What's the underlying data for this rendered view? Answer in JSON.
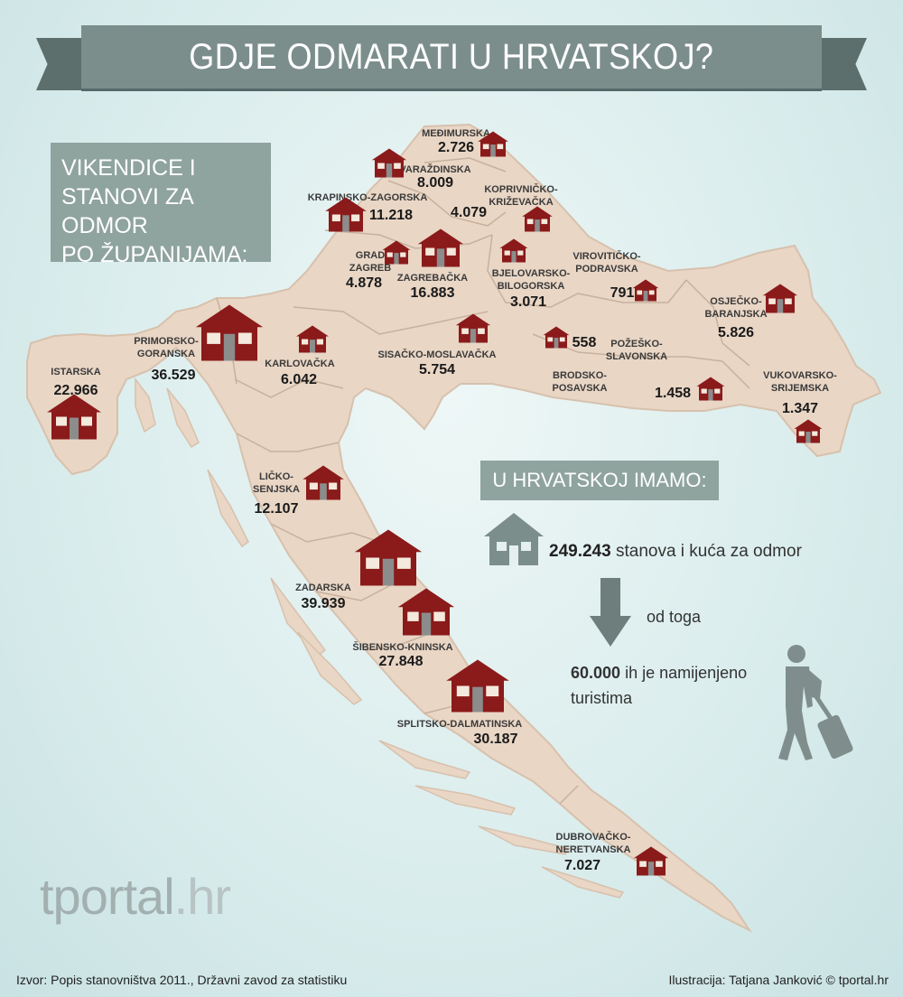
{
  "title": "GDJE ODMARATI U HRVATSKOJ?",
  "subtitle": "VIKENDICE I\nSTANOVI ZA ODMOR\nPO ŽUPANIJAMA:",
  "colors": {
    "house": "#8b1a1a",
    "land": "#e9d6c5",
    "border": "#c4ad99",
    "panel": "#8fa39f",
    "banner": "#7b8e8b"
  },
  "counties": [
    {
      "name": "MEĐIMURSKA",
      "value": "2.726"
    },
    {
      "name": "VARAŽDINSKA",
      "value": "8.009"
    },
    {
      "name": "KOPRIVNIČKO-\nKRIŽEVAČKA",
      "value": "4.079"
    },
    {
      "name": "KRAPINSKO-ZAGORSKA",
      "value": "11.218"
    },
    {
      "name": "GRAD\nZAGREB",
      "value": "4.878"
    },
    {
      "name": "ZAGREBAČKA",
      "value": "16.883"
    },
    {
      "name": "BJELOVARSKO-\nBILOGORSKA",
      "value": "3.071"
    },
    {
      "name": "VIROVITIČKO-\nPODRAVSKA",
      "value": "791"
    },
    {
      "name": "OSJEČKO-\nBARANJSKA",
      "value": "5.826"
    },
    {
      "name": "PRIMORSKO-\nGORANSKA",
      "value": "36.529"
    },
    {
      "name": "KARLOVAČKA",
      "value": "6.042"
    },
    {
      "name": "SISAČKO-MOSLAVAČKA",
      "value": "5.754"
    },
    {
      "name": "POŽEŠKO-\nSLAVONSKA",
      "value": "558"
    },
    {
      "name": "BRODSKO-\nPOSAVSKA",
      "value": "1.458"
    },
    {
      "name": "VUKOVARSKO-\nSRIJEMSKA",
      "value": "1.347"
    },
    {
      "name": "ISTARSKA",
      "value": "22.966"
    },
    {
      "name": "LIČKO-\nSENJSKA",
      "value": "12.107"
    },
    {
      "name": "ZADARSKA",
      "value": "39.939"
    },
    {
      "name": "ŠIBENSKO-KNINSKA",
      "value": "27.848"
    },
    {
      "name": "SPLITSKO-DALMATINSKA",
      "value": "30.187"
    },
    {
      "name": "DUBROVAČKO-\nNERETVANSKA",
      "value": "7.027"
    }
  ],
  "summary": {
    "title": "U HRVATSKOJ IMAMO:",
    "total_value": "249.243",
    "total_text": "stanova i kuća za odmor",
    "of_which": "od toga",
    "tourist_value": "60.000",
    "tourist_text": "ih je namijenjeno turistima"
  },
  "logo": {
    "main": "tportal",
    "suffix": ".hr"
  },
  "footer": {
    "source": "Izvor: Popis stanovništva 2011., Državni zavod za statistiku",
    "credit": "Ilustracija: Tatjana Janković © tportal.hr"
  },
  "icons": [
    "house-icon",
    "large-house-icon",
    "down-arrow-icon",
    "traveler-icon"
  ]
}
